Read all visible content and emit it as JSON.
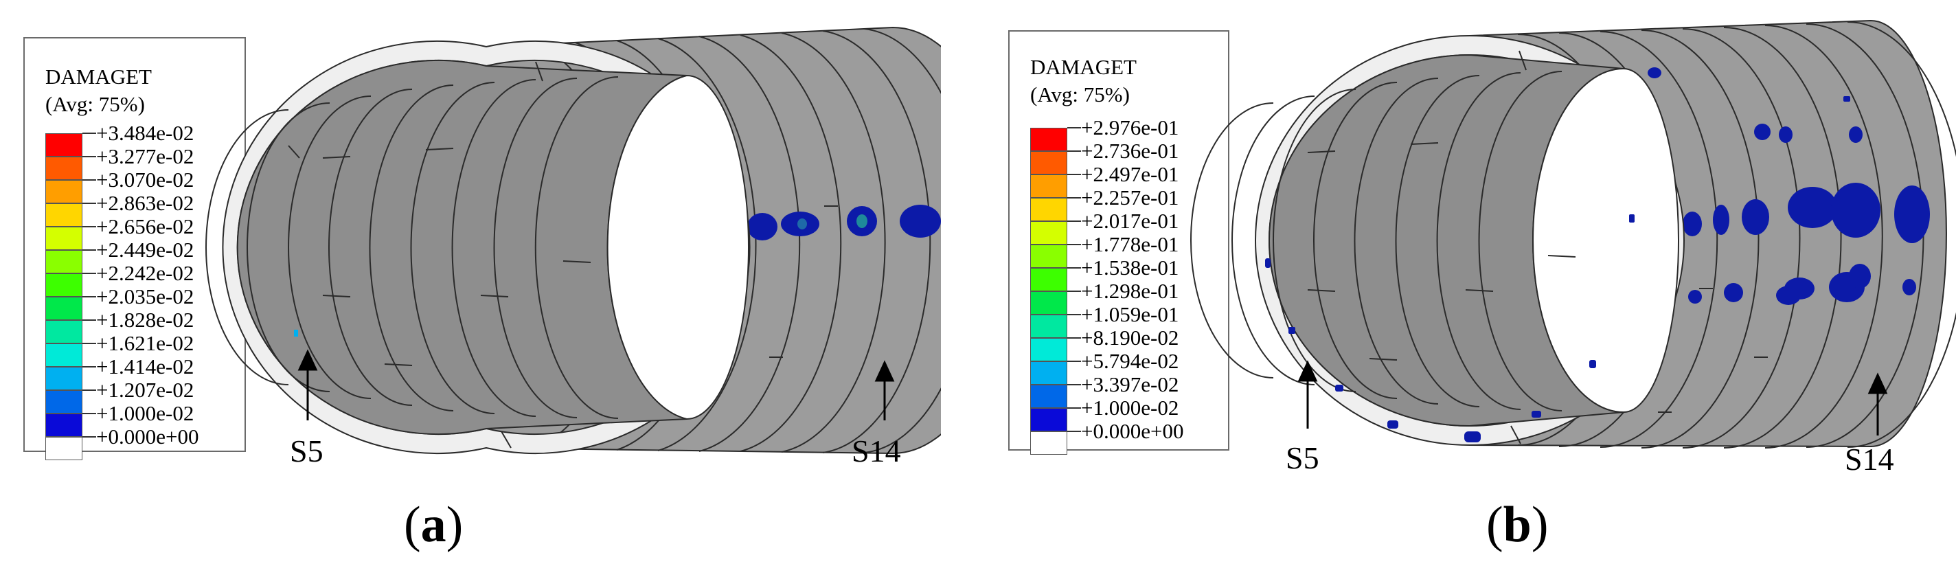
{
  "panels": [
    {
      "label_open": "(",
      "label_letter": "a",
      "label_close": ")",
      "legend": {
        "variable": "DAMAGET",
        "averaging": "(Avg: 75%)",
        "ticks": [
          "+3.484e-02",
          "+3.277e-02",
          "+3.070e-02",
          "+2.863e-02",
          "+2.656e-02",
          "+2.449e-02",
          "+2.242e-02",
          "+2.035e-02",
          "+1.828e-02",
          "+1.621e-02",
          "+1.414e-02",
          "+1.207e-02",
          "+1.000e-02",
          "+0.000e+00"
        ],
        "colors": [
          "#ff0000",
          "#ff5a00",
          "#ff9e00",
          "#ffd600",
          "#d4ff00",
          "#8aff00",
          "#3dff00",
          "#00e84a",
          "#00e8a0",
          "#00ead8",
          "#00b0f0",
          "#0068e8",
          "#0a0ad8",
          "#ffffff"
        ]
      },
      "markers": [
        "S5",
        "S14"
      ]
    },
    {
      "label_open": "(",
      "label_letter": "b",
      "label_close": ")",
      "legend": {
        "variable": "DAMAGET",
        "averaging": "(Avg: 75%)",
        "ticks": [
          "+2.976e-01",
          "+2.736e-01",
          "+2.497e-01",
          "+2.257e-01",
          "+2.017e-01",
          "+1.778e-01",
          "+1.538e-01",
          "+1.298e-01",
          "+1.059e-01",
          "+8.190e-02",
          "+5.794e-02",
          "+3.397e-02",
          "+1.000e-02",
          "+0.000e+00"
        ],
        "colors": [
          "#ff0000",
          "#ff5a00",
          "#ff9e00",
          "#ffd600",
          "#d4ff00",
          "#8aff00",
          "#3dff00",
          "#00e84a",
          "#00e8a0",
          "#00ead8",
          "#00b0f0",
          "#0068e8",
          "#0a0ad8",
          "#ffffff"
        ]
      },
      "markers": [
        "S5",
        "S14"
      ]
    }
  ],
  "colors": {
    "tunnel_outer": "#9c9c9c",
    "tunnel_inner": "#8e8e8e",
    "ring_face": "#efefef",
    "damage": "#0c1aa8"
  }
}
